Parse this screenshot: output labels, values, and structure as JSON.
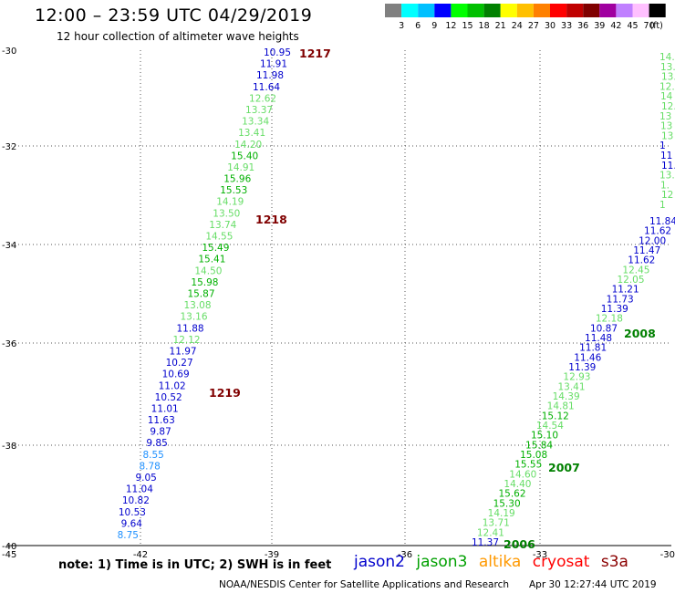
{
  "title": "12:00 – 23:59 UTC 04/29/2019",
  "subtitle": "12 hour collection of altimeter wave heights",
  "legend": {
    "colors": [
      "#808080",
      "#00ffff",
      "#00c0ff",
      "#0000ff",
      "#00ff00",
      "#00c000",
      "#008000",
      "#ffff00",
      "#ffc000",
      "#ff8000",
      "#ff0000",
      "#c00000",
      "#800000",
      "#a000a0",
      "#c080ff",
      "#ffc0ff",
      "#000000"
    ],
    "labels": [
      "3",
      "6",
      "9",
      "12",
      "15",
      "18",
      "21",
      "24",
      "27",
      "30",
      "33",
      "36",
      "39",
      "42",
      "45",
      "70",
      "(ft)"
    ]
  },
  "axes": {
    "y_ticks": [
      "-30",
      "-32",
      "-34",
      "-36",
      "-38",
      "-40"
    ],
    "x_ticks": [
      "-45",
      "-42",
      "-39",
      "-36",
      "-33",
      "-30"
    ]
  },
  "pass_labels": [
    {
      "id": "1217",
      "color": "#800000"
    },
    {
      "id": "1218",
      "color": "#800000"
    },
    {
      "id": "1219",
      "color": "#800000"
    },
    {
      "id": "2008",
      "color": "#008000"
    },
    {
      "id": "2007",
      "color": "#008000"
    },
    {
      "id": "2006",
      "color": "#008000"
    }
  ],
  "track_left": [
    {
      "v": "10.95",
      "c": "#0000cd"
    },
    {
      "v": "11.91",
      "c": "#0000cd"
    },
    {
      "v": "11.98",
      "c": "#0000cd"
    },
    {
      "v": "11.64",
      "c": "#0000cd"
    },
    {
      "v": "12.62",
      "c": "#66dd66"
    },
    {
      "v": "13.37",
      "c": "#66dd66"
    },
    {
      "v": "13.34",
      "c": "#66dd66"
    },
    {
      "v": "13.41",
      "c": "#66dd66"
    },
    {
      "v": "14.20",
      "c": "#66dd66"
    },
    {
      "v": "15.40",
      "c": "#00b000"
    },
    {
      "v": "14.91",
      "c": "#66dd66"
    },
    {
      "v": "15.96",
      "c": "#00b000"
    },
    {
      "v": "15.53",
      "c": "#00b000"
    },
    {
      "v": "14.19",
      "c": "#66dd66"
    },
    {
      "v": "13.50",
      "c": "#66dd66"
    },
    {
      "v": "13.74",
      "c": "#66dd66"
    },
    {
      "v": "14.55",
      "c": "#66dd66"
    },
    {
      "v": "15.49",
      "c": "#00b000"
    },
    {
      "v": "15.41",
      "c": "#00b000"
    },
    {
      "v": "14.50",
      "c": "#66dd66"
    },
    {
      "v": "15.98",
      "c": "#00b000"
    },
    {
      "v": "15.87",
      "c": "#00b000"
    },
    {
      "v": "13.08",
      "c": "#66dd66"
    },
    {
      "v": "13.16",
      "c": "#66dd66"
    },
    {
      "v": "11.88",
      "c": "#0000cd"
    },
    {
      "v": "12.12",
      "c": "#66dd66"
    },
    {
      "v": "11.97",
      "c": "#0000cd"
    },
    {
      "v": "10.27",
      "c": "#0000cd"
    },
    {
      "v": "10.69",
      "c": "#0000cd"
    },
    {
      "v": "11.02",
      "c": "#0000cd"
    },
    {
      "v": "10.52",
      "c": "#0000cd"
    },
    {
      "v": "11.01",
      "c": "#0000cd"
    },
    {
      "v": "11.63",
      "c": "#0000cd"
    },
    {
      "v": "9.87",
      "c": "#0000cd"
    },
    {
      "v": "9.85",
      "c": "#0000cd"
    },
    {
      "v": "8.55",
      "c": "#1e90ff"
    },
    {
      "v": "8.78",
      "c": "#1e90ff"
    },
    {
      "v": "9.05",
      "c": "#0000cd"
    },
    {
      "v": "11.04",
      "c": "#0000cd"
    },
    {
      "v": "10.82",
      "c": "#0000cd"
    },
    {
      "v": "10.53",
      "c": "#0000cd"
    },
    {
      "v": "9.64",
      "c": "#0000cd"
    },
    {
      "v": "8.75",
      "c": "#1e90ff"
    }
  ],
  "track_right": [
    {
      "v": "11.84",
      "c": "#0000cd"
    },
    {
      "v": "11.62",
      "c": "#0000cd"
    },
    {
      "v": "12.00",
      "c": "#0000cd"
    },
    {
      "v": "11.47",
      "c": "#0000cd"
    },
    {
      "v": "11.62",
      "c": "#0000cd"
    },
    {
      "v": "12.45",
      "c": "#66dd66"
    },
    {
      "v": "12.05",
      "c": "#66dd66"
    },
    {
      "v": "11.21",
      "c": "#0000cd"
    },
    {
      "v": "11.73",
      "c": "#0000cd"
    },
    {
      "v": "11.39",
      "c": "#0000cd"
    },
    {
      "v": "12.18",
      "c": "#66dd66"
    },
    {
      "v": "10.87",
      "c": "#0000cd"
    },
    {
      "v": "11.48",
      "c": "#0000cd"
    },
    {
      "v": "11.81",
      "c": "#0000cd"
    },
    {
      "v": "11.46",
      "c": "#0000cd"
    },
    {
      "v": "11.39",
      "c": "#0000cd"
    },
    {
      "v": "12.93",
      "c": "#66dd66"
    },
    {
      "v": "13.41",
      "c": "#66dd66"
    },
    {
      "v": "14.39",
      "c": "#66dd66"
    },
    {
      "v": "14.81",
      "c": "#66dd66"
    },
    {
      "v": "15.12",
      "c": "#00b000"
    },
    {
      "v": "14.54",
      "c": "#66dd66"
    },
    {
      "v": "15.10",
      "c": "#00b000"
    },
    {
      "v": "15.84",
      "c": "#00b000"
    },
    {
      "v": "15.08",
      "c": "#00b000"
    },
    {
      "v": "15.55",
      "c": "#00b000"
    },
    {
      "v": "14.60",
      "c": "#66dd66"
    },
    {
      "v": "14.40",
      "c": "#66dd66"
    },
    {
      "v": "15.62",
      "c": "#00b000"
    },
    {
      "v": "15.30",
      "c": "#00b000"
    },
    {
      "v": "14.19",
      "c": "#66dd66"
    },
    {
      "v": "13.71",
      "c": "#66dd66"
    },
    {
      "v": "12.41",
      "c": "#66dd66"
    },
    {
      "v": "11.37",
      "c": "#0000cd"
    }
  ],
  "edge_right": [
    {
      "v": "14.3",
      "c": "#66dd66"
    },
    {
      "v": "13.",
      "c": "#66dd66"
    },
    {
      "v": "13.",
      "c": "#66dd66"
    },
    {
      "v": "12.",
      "c": "#66dd66"
    },
    {
      "v": "14",
      "c": "#66dd66"
    },
    {
      "v": "12.",
      "c": "#66dd66"
    },
    {
      "v": "13",
      "c": "#66dd66"
    },
    {
      "v": "13",
      "c": "#66dd66"
    },
    {
      "v": "13",
      "c": "#66dd66"
    },
    {
      "v": "1",
      "c": "#0000cd"
    },
    {
      "v": "11",
      "c": "#0000cd"
    },
    {
      "v": "11.0",
      "c": "#0000cd"
    },
    {
      "v": "13.0",
      "c": "#66dd66"
    },
    {
      "v": "1.",
      "c": "#66dd66"
    },
    {
      "v": "12",
      "c": "#66dd66"
    },
    {
      "v": "1",
      "c": "#66dd66"
    }
  ],
  "note": "note:  1) Time is in UTC;  2) SWH is in feet",
  "satellites": [
    {
      "name": "jason2",
      "color": "#0000cc"
    },
    {
      "name": "jason3",
      "color": "#00a000"
    },
    {
      "name": "altika",
      "color": "#ff9900"
    },
    {
      "name": "cryosat",
      "color": "#ff0000"
    },
    {
      "name": "s3a",
      "color": "#8b0000"
    }
  ],
  "footer": "NOAA/NESDIS Center for Satellite Applications and Research",
  "timestamp": "Apr 30 12:27:44 UTC 2019"
}
